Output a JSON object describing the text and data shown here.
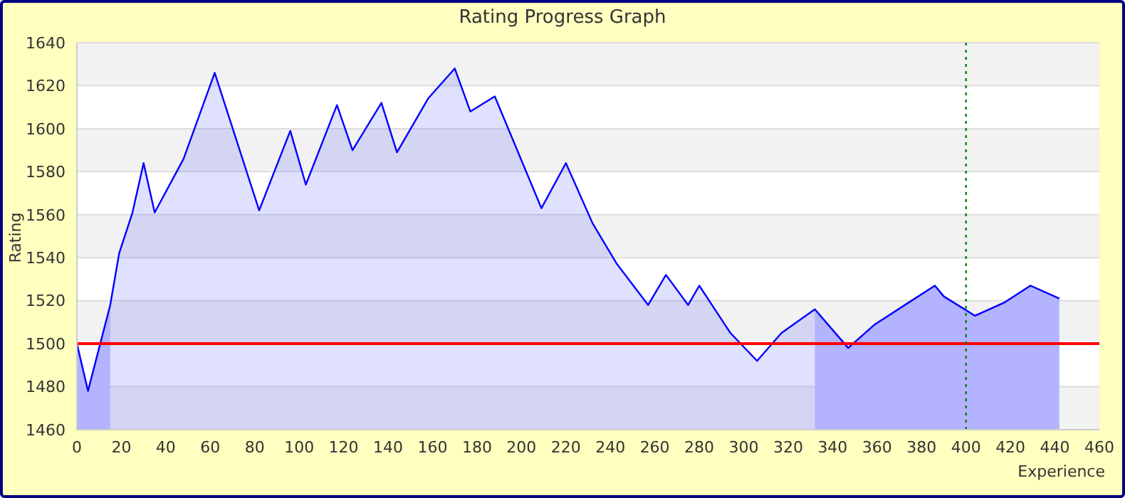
{
  "chart_data": {
    "type": "area",
    "title": "Rating Progress Graph",
    "xlabel": "Experience",
    "ylabel": "Rating",
    "xlim": [
      0,
      460
    ],
    "xticks": [
      0,
      20,
      40,
      60,
      80,
      100,
      120,
      140,
      160,
      180,
      200,
      220,
      240,
      260,
      280,
      300,
      320,
      340,
      360,
      380,
      400,
      420,
      440,
      460
    ],
    "ylim": [
      1460,
      1640
    ],
    "yticks": [
      1460,
      1480,
      1500,
      1520,
      1540,
      1560,
      1580,
      1600,
      1620,
      1640
    ],
    "grid": "y",
    "series": [
      {
        "color": "#0000ff",
        "x": [
          0,
          5,
          15,
          19,
          25,
          30,
          35,
          48,
          62,
          82,
          96,
          103,
          117,
          124,
          137,
          144,
          158,
          170,
          177,
          188,
          209,
          220,
          232,
          243,
          257,
          265,
          275,
          280,
          294,
          306,
          317,
          332,
          347,
          359,
          386,
          390,
          404,
          417,
          429,
          442
        ],
        "values": [
          1500,
          1478,
          1518,
          1542,
          1561,
          1584,
          1561,
          1586,
          1626,
          1562,
          1599,
          1574,
          1611,
          1590,
          1612,
          1589,
          1614,
          1628,
          1608,
          1615,
          1563,
          1584,
          1556,
          1537,
          1518,
          1532,
          1518,
          1527,
          1505,
          1492,
          1505,
          1516,
          1498,
          1509,
          1527,
          1522,
          1513,
          1519,
          1527,
          1521
        ]
      },
      {
        "color": "#ccccff",
        "x": [
          0,
          5,
          15
        ],
        "values": [
          1500,
          1478,
          1518
        ]
      },
      {
        "color": "#ccccff",
        "x": [
          332,
          347,
          359,
          386,
          390,
          404,
          417,
          429,
          442
        ],
        "values": [
          1516,
          1498,
          1509,
          1527,
          1522,
          1513,
          1519,
          1527,
          1521
        ]
      }
    ],
    "ref_lines": [
      {
        "axis": "y",
        "value": 1500,
        "color": "#ff0000",
        "line_style": "solid"
      },
      {
        "axis": "x",
        "value": 400,
        "color": "#008000",
        "line_style": "dotted"
      }
    ]
  }
}
